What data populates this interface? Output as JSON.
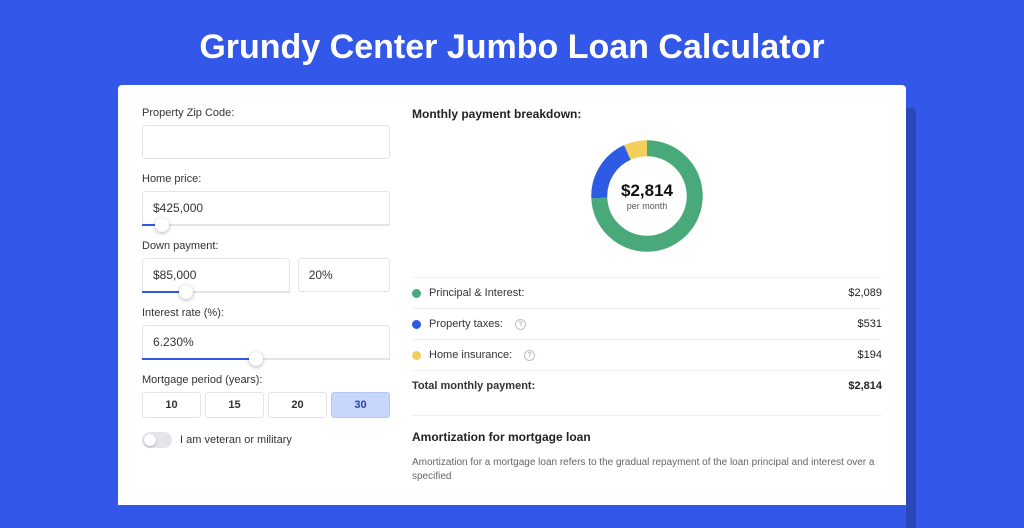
{
  "title": "Grundy Center Jumbo Loan Calculator",
  "colors": {
    "page_bg": "#3357e8",
    "card_bg": "#ffffff",
    "accent": "#3357e8",
    "shadow": "#2c47b8"
  },
  "form": {
    "zip": {
      "label": "Property Zip Code:",
      "value": ""
    },
    "home_price": {
      "label": "Home price:",
      "value": "$425,000",
      "slider_pct": 8
    },
    "down_payment": {
      "label": "Down payment:",
      "value": "$85,000",
      "percent": "20%",
      "slider_pct": 30
    },
    "interest_rate": {
      "label": "Interest rate (%):",
      "value": "6.230%",
      "slider_pct": 46
    },
    "mortgage_period": {
      "label": "Mortgage period (years):",
      "options": [
        "10",
        "15",
        "20",
        "30"
      ],
      "selected": "30"
    },
    "veteran": {
      "label": "I am veteran or military",
      "checked": false
    }
  },
  "breakdown": {
    "title": "Monthly payment breakdown:",
    "center_value": "$2,814",
    "center_sub": "per month",
    "donut": {
      "slices": [
        {
          "key": "principal_interest",
          "value": 2089,
          "color": "#4aa97b"
        },
        {
          "key": "property_taxes",
          "value": 531,
          "color": "#2e5be3"
        },
        {
          "key": "home_insurance",
          "value": 194,
          "color": "#f2cf5a"
        }
      ],
      "stroke_width": 16
    },
    "rows": [
      {
        "label": "Principal & Interest:",
        "value": "$2,089",
        "color": "#4aa97b",
        "help": false
      },
      {
        "label": "Property taxes:",
        "value": "$531",
        "color": "#2e5be3",
        "help": true
      },
      {
        "label": "Home insurance:",
        "value": "$194",
        "color": "#f2cf5a",
        "help": true
      }
    ],
    "total": {
      "label": "Total monthly payment:",
      "value": "$2,814"
    }
  },
  "amortization": {
    "title": "Amortization for mortgage loan",
    "body": "Amortization for a mortgage loan refers to the gradual repayment of the loan principal and interest over a specified"
  }
}
